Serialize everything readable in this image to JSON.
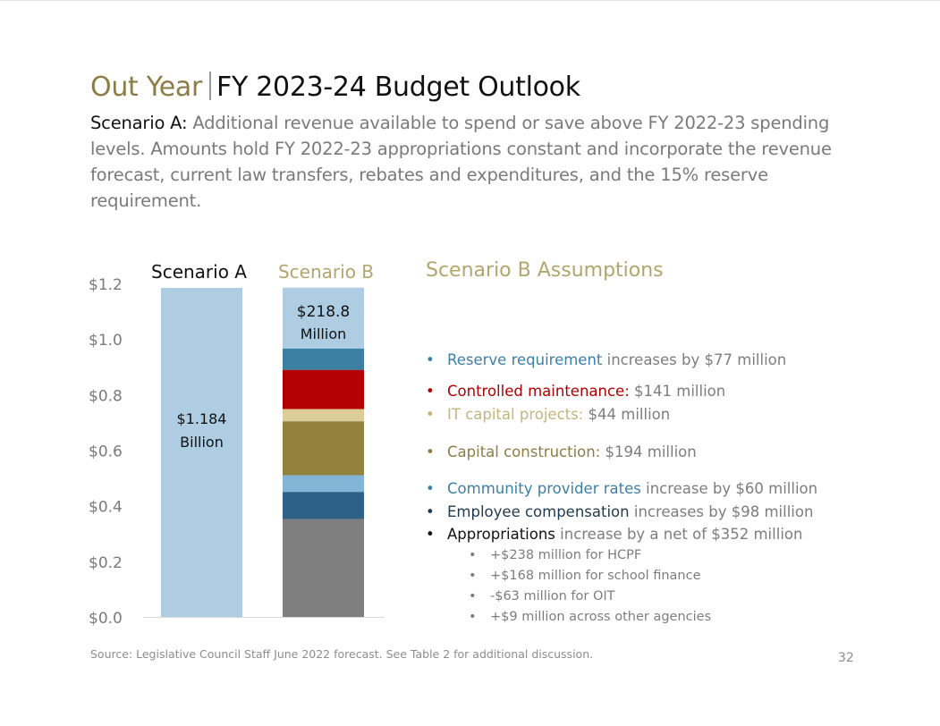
{
  "title": {
    "prefix": "Out Year",
    "main": "FY 2023-24 Budget Outlook"
  },
  "description": {
    "lead": "Scenario A:",
    "text": " Additional revenue available to spend or save above FY 2022-23 spending levels. Amounts hold FY 2022-23 appropriations constant and incorporate the revenue forecast, current law transfers, rebates and expenditures, and the 15% reserve requirement."
  },
  "colors": {
    "gold": "#8b7d45",
    "light_gold": "#b3a56e",
    "blue_text": "#3d7fa6",
    "red_text": "#b00000",
    "navy_text": "#1f3a4d"
  },
  "chart_data": {
    "type": "bar",
    "stacked": true,
    "units": "$ billions",
    "ylim": [
      0,
      1.2
    ],
    "yticks": [
      "$0.0",
      "$0.2",
      "$0.4",
      "$0.6",
      "$0.8",
      "$1.0",
      "$1.2"
    ],
    "ytick_values": [
      0,
      0.2,
      0.4,
      0.6,
      0.8,
      1.0,
      1.2
    ],
    "grid": false,
    "categories": [
      "Scenario A",
      "Scenario B"
    ],
    "category_colors": [
      "#111111",
      "#b3a56e"
    ],
    "bars": [
      {
        "category": "Scenario A",
        "label_line1": "$1.184",
        "label_line2": "Billion",
        "segments": [
          {
            "name": "Available to spend or save",
            "value": 1.184,
            "color": "#aecde3"
          }
        ]
      },
      {
        "category": "Scenario B",
        "label_line1": "$218.8",
        "label_line2": "Million",
        "segments": [
          {
            "name": "Appropriations",
            "value": 0.352,
            "color": "#7f7f7f"
          },
          {
            "name": "Employee compensation",
            "value": 0.098,
            "color": "#2e6186"
          },
          {
            "name": "Community provider rates",
            "value": 0.06,
            "color": "#83b5d6"
          },
          {
            "name": "Capital construction",
            "value": 0.194,
            "color": "#93823d"
          },
          {
            "name": "IT capital projects",
            "value": 0.044,
            "color": "#dccd98"
          },
          {
            "name": "Controlled maintenance",
            "value": 0.141,
            "color": "#b50000"
          },
          {
            "name": "Reserve requirement",
            "value": 0.077,
            "color": "#3b7fa3"
          },
          {
            "name": "Remaining available",
            "value": 0.2188,
            "color": "#aecde3"
          }
        ]
      }
    ]
  },
  "assumptions": {
    "title": "Scenario B Assumptions",
    "items": [
      {
        "key": "Reserve requirement",
        "rest": " increases by $77 million",
        "key_color": "#3d7fa6",
        "dot_color": "#3d7fa6"
      },
      {
        "key": "Controlled maintenance:",
        "rest": " $141 million",
        "key_color": "#b00000",
        "dot_color": "#b00000"
      },
      {
        "key": "IT capital projects:",
        "rest": " $44 million",
        "key_color": "#c3b57e",
        "dot_color": "#c3b57e"
      },
      {
        "key": "Capital construction:",
        "rest": " $194 million",
        "key_color": "#8b7d45",
        "dot_color": "#8b7d45"
      },
      {
        "key": "Community provider rates",
        "rest": " increase by $60 million",
        "key_color": "#3d7fa6",
        "dot_color": "#3d7fa6"
      },
      {
        "key": "Employee compensation",
        "rest": " increases by $98 million",
        "key_color": "#1f3a4d",
        "dot_color": "#1f3a4d"
      },
      {
        "key": "Appropriations",
        "rest": " increase by a net of $352 million",
        "key_color": "#111111",
        "dot_color": "#111111"
      }
    ],
    "sub_items": [
      "+$238 million for HCPF",
      "+$168 million for school finance",
      "-$63 million for OIT",
      "+$9 million across other agencies"
    ]
  },
  "footer": {
    "source": "Source: Legislative Council Staff June 2022 forecast.  See Table 2 for additional discussion.",
    "page_number": "32"
  }
}
